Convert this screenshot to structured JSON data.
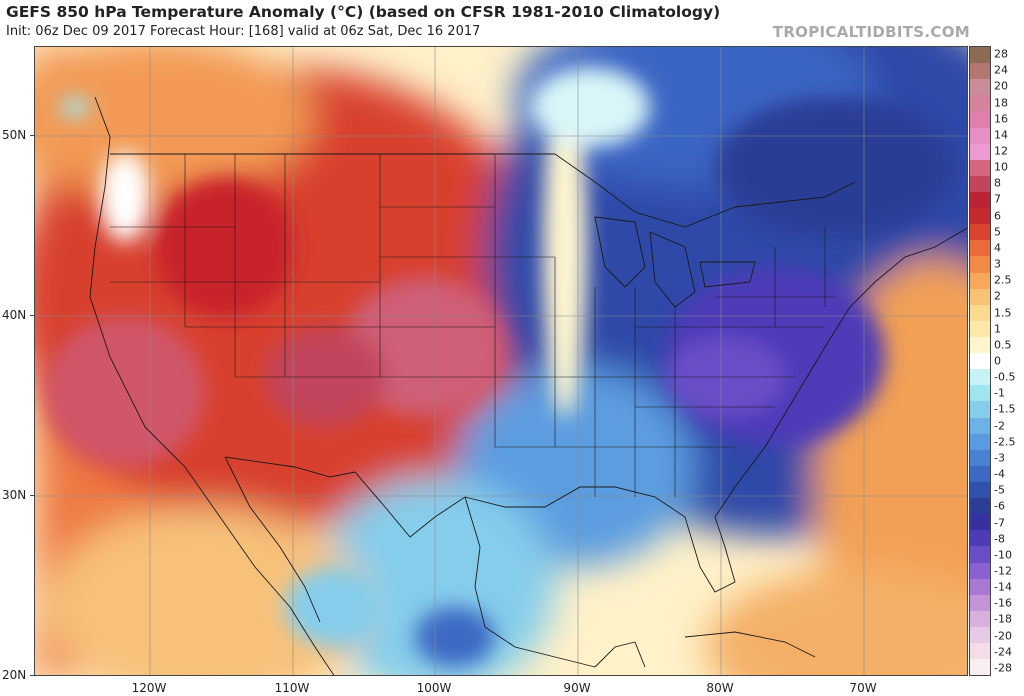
{
  "header": {
    "title": "GEFS 850 hPa Temperature Anomaly (°C) (based on CFSR 1981-2010 Climatology)",
    "subtitle": "Init: 06z Dec 09 2017   Forecast Hour: [168]   valid at 06z Sat, Dec 16 2017",
    "watermark": "TROPICALTIDBITS.COM"
  },
  "map": {
    "latitude_labels": [
      "50N",
      "40N",
      "30N",
      "20N"
    ],
    "longitude_labels": [
      "120W",
      "110W",
      "100W",
      "90W",
      "80W",
      "70W"
    ],
    "features": [
      {
        "name": "warm-anomaly-west",
        "value": 6,
        "color": "#c8232a"
      },
      {
        "name": "warm-anomaly-core-southwest",
        "value": 10,
        "color": "#d0576a"
      },
      {
        "name": "warm-anomaly-core-plains",
        "value": 10,
        "color": "#cf5f77"
      },
      {
        "name": "cold-anomaly-east",
        "value": -6,
        "color": "#2a3f9e"
      },
      {
        "name": "cold-anomaly-core-appalachians",
        "value": -10,
        "color": "#6b4fc2"
      },
      {
        "name": "warm-anomaly-atlantic",
        "value": 3,
        "color": "#f08b4e"
      },
      {
        "name": "cool-anomaly-mexico",
        "value": -2,
        "color": "#65a9e4"
      }
    ]
  },
  "colorbar": {
    "labels": [
      "28",
      "24",
      "20",
      "18",
      "16",
      "14",
      "12",
      "10",
      "8",
      "7",
      "6",
      "5",
      "4",
      "3",
      "2.5",
      "2",
      "1.5",
      "1",
      "0.5",
      "0",
      "-0.5",
      "-1",
      "-1.5",
      "-2",
      "-2.5",
      "-3",
      "-4",
      "-5",
      "-6",
      "-7",
      "-8",
      "-10",
      "-12",
      "-14",
      "-16",
      "-18",
      "-20",
      "-24",
      "-28"
    ],
    "colors": [
      "#8b6b53",
      "#b2776f",
      "#c98d9a",
      "#d5839b",
      "#df7fae",
      "#e68fc4",
      "#ee99cf",
      "#d7667c",
      "#c1455c",
      "#b92333",
      "#c62a2e",
      "#d9442f",
      "#ea6a3a",
      "#f08a45",
      "#f6a85c",
      "#f8c275",
      "#fbd98d",
      "#fde8a7",
      "#fff6cf",
      "#ffffff",
      "#c8f3f6",
      "#9fe5ef",
      "#85cdeb",
      "#6cb2e6",
      "#5a9bdf",
      "#4a82d3",
      "#3d69c4",
      "#3151ad",
      "#2b3d95",
      "#3730a0",
      "#4d3bb8",
      "#6a4ec8",
      "#8a62d0",
      "#a879d4",
      "#c493d8",
      "#d8b0dd",
      "#e6c9e3",
      "#f2dde9",
      "#fbeef1"
    ]
  }
}
